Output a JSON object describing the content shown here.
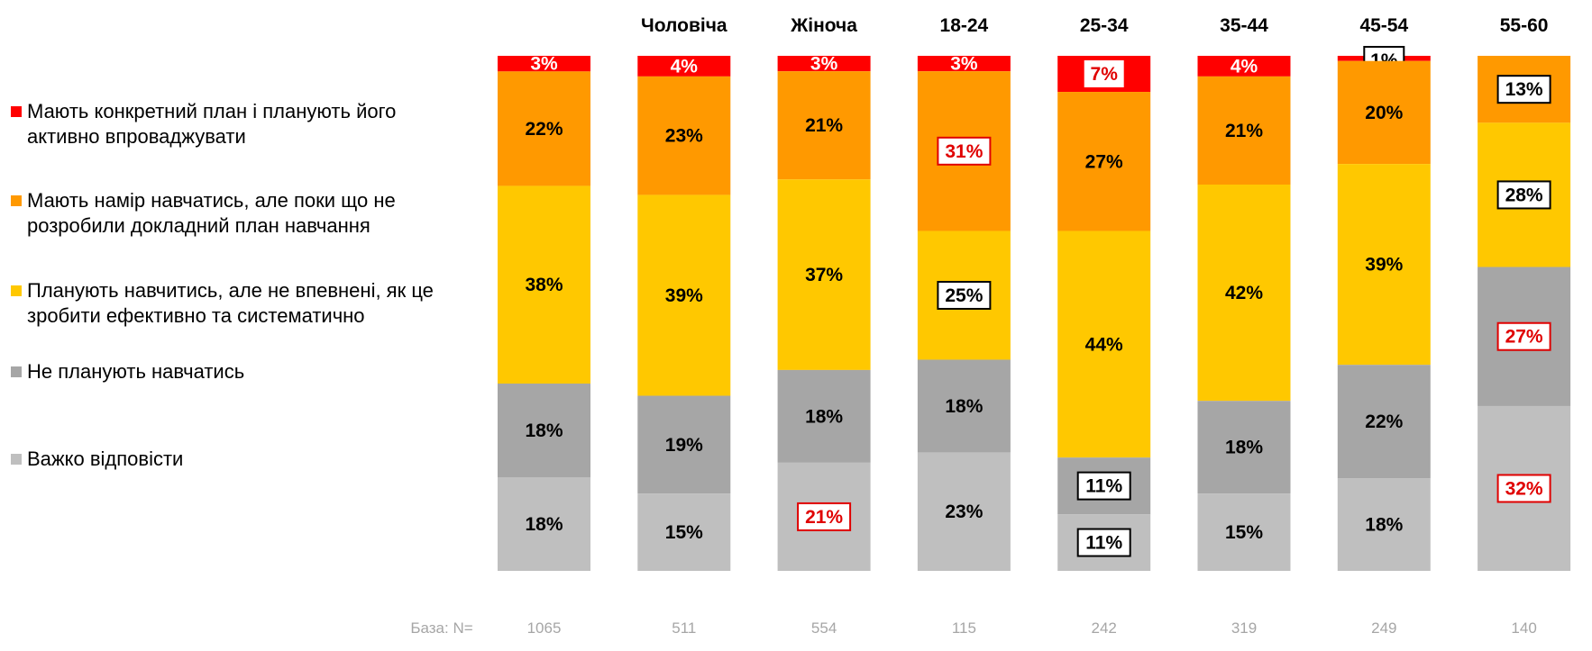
{
  "colors": {
    "plan": "#FF0000",
    "intend": "#FF9900",
    "unsure": "#FFC800",
    "no": "#A6A6A6",
    "hard": "#BFBFBF"
  },
  "legend": [
    {
      "key": "plan",
      "lines": [
        "Мають конкретний план і планують його",
        "активно впроваджувати"
      ]
    },
    {
      "key": "intend",
      "lines": [
        "Мають намір навчатись, але поки що не",
        "розробили докладний план навчання"
      ]
    },
    {
      "key": "unsure",
      "lines": [
        "Планують навчитись, але не впевнені, як це",
        "зробити ефективно та систематично"
      ]
    },
    {
      "key": "no",
      "lines": [
        "Не планують навчатись"
      ]
    },
    {
      "key": "hard",
      "lines": [
        "Важко відповісти"
      ]
    }
  ],
  "chart_data": {
    "type": "bar",
    "stacked": true,
    "orientation": "vertical",
    "categories": [
      "",
      "Чоловіча",
      "Жіноча",
      "18-24",
      "25-34",
      "35-44",
      "45-54",
      "55-60"
    ],
    "series": [
      {
        "key": "plan",
        "name": "Мають конкретний план і планують його активно впроваджувати",
        "values": [
          3,
          4,
          3,
          3,
          7,
          4,
          1,
          0
        ]
      },
      {
        "key": "intend",
        "name": "Мають намір навчатись, але поки що не розробили докладний план навчання",
        "values": [
          22,
          23,
          21,
          31,
          27,
          21,
          20,
          13
        ]
      },
      {
        "key": "unsure",
        "name": "Планують навчитись, але не впевнені, як це зробити ефективно та систематично",
        "values": [
          38,
          39,
          37,
          25,
          44,
          42,
          39,
          28
        ]
      },
      {
        "key": "no",
        "name": "Не планують навчатись",
        "values": [
          18,
          19,
          18,
          18,
          11,
          18,
          22,
          27
        ]
      },
      {
        "key": "hard",
        "name": "Важко відповісти",
        "values": [
          18,
          15,
          21,
          23,
          11,
          15,
          18,
          32
        ]
      }
    ],
    "label_styles": [
      [
        "white",
        "plain",
        "plain",
        "plain",
        "plain"
      ],
      [
        "white",
        "plain",
        "plain",
        "plain",
        "plain"
      ],
      [
        "white",
        "plain",
        "plain",
        "plain",
        "redbox"
      ],
      [
        "white",
        "redbox",
        "blackbox",
        "plain",
        "plain"
      ],
      [
        "redfill",
        "plain",
        "plain",
        "blackbox",
        "blackbox"
      ],
      [
        "white",
        "plain",
        "plain",
        "plain",
        "plain"
      ],
      [
        "blackbox",
        "plain",
        "plain",
        "plain",
        "plain"
      ],
      [
        "none",
        "blackbox",
        "blackbox",
        "redbox",
        "redbox"
      ]
    ],
    "base_label": "База: N=",
    "base_n": [
      "1065",
      "511",
      "554",
      "115",
      "242",
      "319",
      "249",
      "140"
    ],
    "unit": "%",
    "legend_position": "left"
  }
}
